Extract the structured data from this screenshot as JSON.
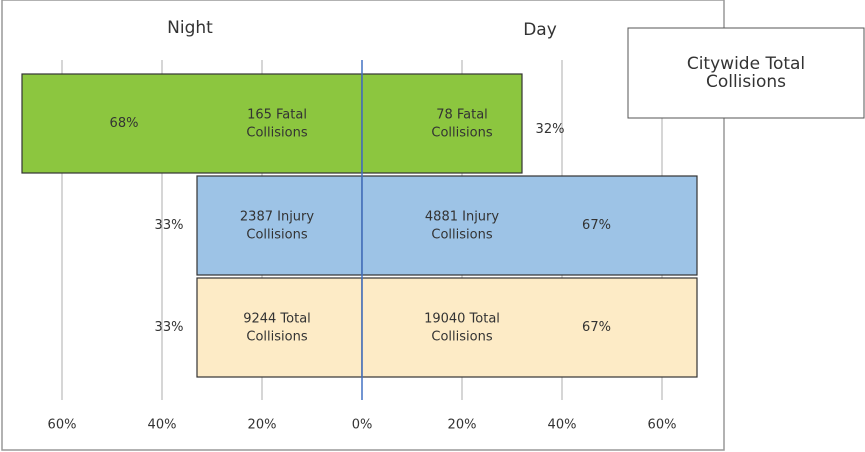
{
  "chart_data": {
    "type": "diverging-bar",
    "title": "Citywide Total Collisions",
    "side_labels": [
      "Night",
      "Day"
    ],
    "series": [
      {
        "name": "Night",
        "values": [
          68,
          33,
          33
        ],
        "value_labels": [
          "68%",
          "33%",
          "33%"
        ],
        "labels": [
          "165 Fatal Collisions",
          "2387 Injury Collisions",
          "9244 Total Collisions"
        ]
      },
      {
        "name": "Day",
        "values": [
          32,
          67,
          67
        ],
        "value_labels": [
          "32%",
          "67%",
          "67%"
        ],
        "labels": [
          "78 Fatal Collisions",
          "4881 Injury Collisions",
          "19040 Total Collisions"
        ]
      }
    ],
    "colors": [
      "#8cc63f",
      "#9dc3e6",
      "#fdebc6"
    ],
    "xlim": [
      -70,
      72
    ],
    "xticks": [
      {
        "value": -60,
        "label": "60%"
      },
      {
        "value": -40,
        "label": "40%"
      },
      {
        "value": -20,
        "label": "20%"
      },
      {
        "value": 0,
        "label": "0%"
      },
      {
        "value": 20,
        "label": "20%"
      },
      {
        "value": 40,
        "label": "40%"
      },
      {
        "value": 60,
        "label": "60%"
      }
    ],
    "grid": true
  }
}
